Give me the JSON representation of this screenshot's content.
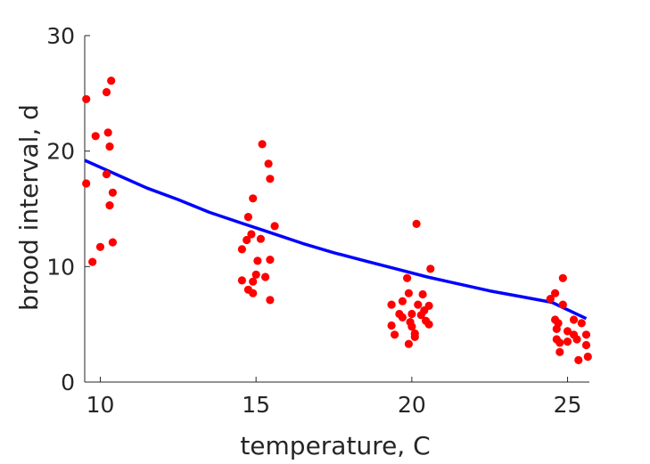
{
  "chart_data": {
    "type": "scatter",
    "xlabel": "temperature, C",
    "ylabel": "brood interval, d",
    "xlim": [
      9.5,
      25.7
    ],
    "ylim": [
      0,
      30
    ],
    "xticks": [
      10,
      15,
      20,
      25
    ],
    "yticks": [
      0,
      10,
      20,
      30
    ],
    "grid": false,
    "colors": {
      "points": "#ff0000",
      "fit": "#0000ff",
      "axis": "#262626"
    },
    "points": [
      [
        9.55,
        24.5
      ],
      [
        9.55,
        17.2
      ],
      [
        9.75,
        10.4
      ],
      [
        9.85,
        21.3
      ],
      [
        10.0,
        11.7
      ],
      [
        10.2,
        25.1
      ],
      [
        10.2,
        18.0
      ],
      [
        10.25,
        21.6
      ],
      [
        10.3,
        20.4
      ],
      [
        10.3,
        15.3
      ],
      [
        10.35,
        26.1
      ],
      [
        10.4,
        16.4
      ],
      [
        10.4,
        12.1
      ],
      [
        14.55,
        8.8
      ],
      [
        14.55,
        11.5
      ],
      [
        14.7,
        12.3
      ],
      [
        14.75,
        14.3
      ],
      [
        14.75,
        8.0
      ],
      [
        14.85,
        12.8
      ],
      [
        14.9,
        8.7
      ],
      [
        14.9,
        7.7
      ],
      [
        14.9,
        15.9
      ],
      [
        15.0,
        9.3
      ],
      [
        15.05,
        10.5
      ],
      [
        15.15,
        12.4
      ],
      [
        15.2,
        20.6
      ],
      [
        15.3,
        9.1
      ],
      [
        15.4,
        18.9
      ],
      [
        15.45,
        17.6
      ],
      [
        15.45,
        10.6
      ],
      [
        15.45,
        7.1
      ],
      [
        15.6,
        13.5
      ],
      [
        19.35,
        6.7
      ],
      [
        19.35,
        4.9
      ],
      [
        19.45,
        4.1
      ],
      [
        19.6,
        5.9
      ],
      [
        19.7,
        7.0
      ],
      [
        19.7,
        5.6
      ],
      [
        19.85,
        9.0
      ],
      [
        19.9,
        3.3
      ],
      [
        19.9,
        7.7
      ],
      [
        19.95,
        5.2
      ],
      [
        20.0,
        5.9
      ],
      [
        20.0,
        4.8
      ],
      [
        20.1,
        4.2
      ],
      [
        20.1,
        3.9
      ],
      [
        20.15,
        13.7
      ],
      [
        20.2,
        6.7
      ],
      [
        20.3,
        5.8
      ],
      [
        20.35,
        7.6
      ],
      [
        20.4,
        6.2
      ],
      [
        20.45,
        5.3
      ],
      [
        20.55,
        6.6
      ],
      [
        20.55,
        5.0
      ],
      [
        20.6,
        9.8
      ],
      [
        24.45,
        7.2
      ],
      [
        24.6,
        7.7
      ],
      [
        24.6,
        5.4
      ],
      [
        24.65,
        4.6
      ],
      [
        24.65,
        3.7
      ],
      [
        24.7,
        5.1
      ],
      [
        24.75,
        3.4
      ],
      [
        24.75,
        2.6
      ],
      [
        24.85,
        9.0
      ],
      [
        24.85,
        6.7
      ],
      [
        25.0,
        4.4
      ],
      [
        25.0,
        3.5
      ],
      [
        25.2,
        5.4
      ],
      [
        25.2,
        4.1
      ],
      [
        25.3,
        3.7
      ],
      [
        25.35,
        1.9
      ],
      [
        25.45,
        5.1
      ],
      [
        25.6,
        4.1
      ],
      [
        25.6,
        3.2
      ],
      [
        25.65,
        2.2
      ]
    ],
    "fit_curve": {
      "x": [
        9.5,
        10.5,
        11.5,
        12.5,
        13.5,
        14.5,
        15.5,
        16.5,
        17.5,
        18.5,
        19.5,
        20.5,
        21.5,
        22.5,
        23.5,
        24.5,
        25.6
      ],
      "y": [
        19.2,
        18.0,
        16.8,
        15.8,
        14.7,
        13.8,
        12.9,
        12.0,
        11.2,
        10.5,
        9.8,
        9.1,
        8.5,
        7.9,
        7.4,
        6.9,
        5.5
      ]
    }
  }
}
